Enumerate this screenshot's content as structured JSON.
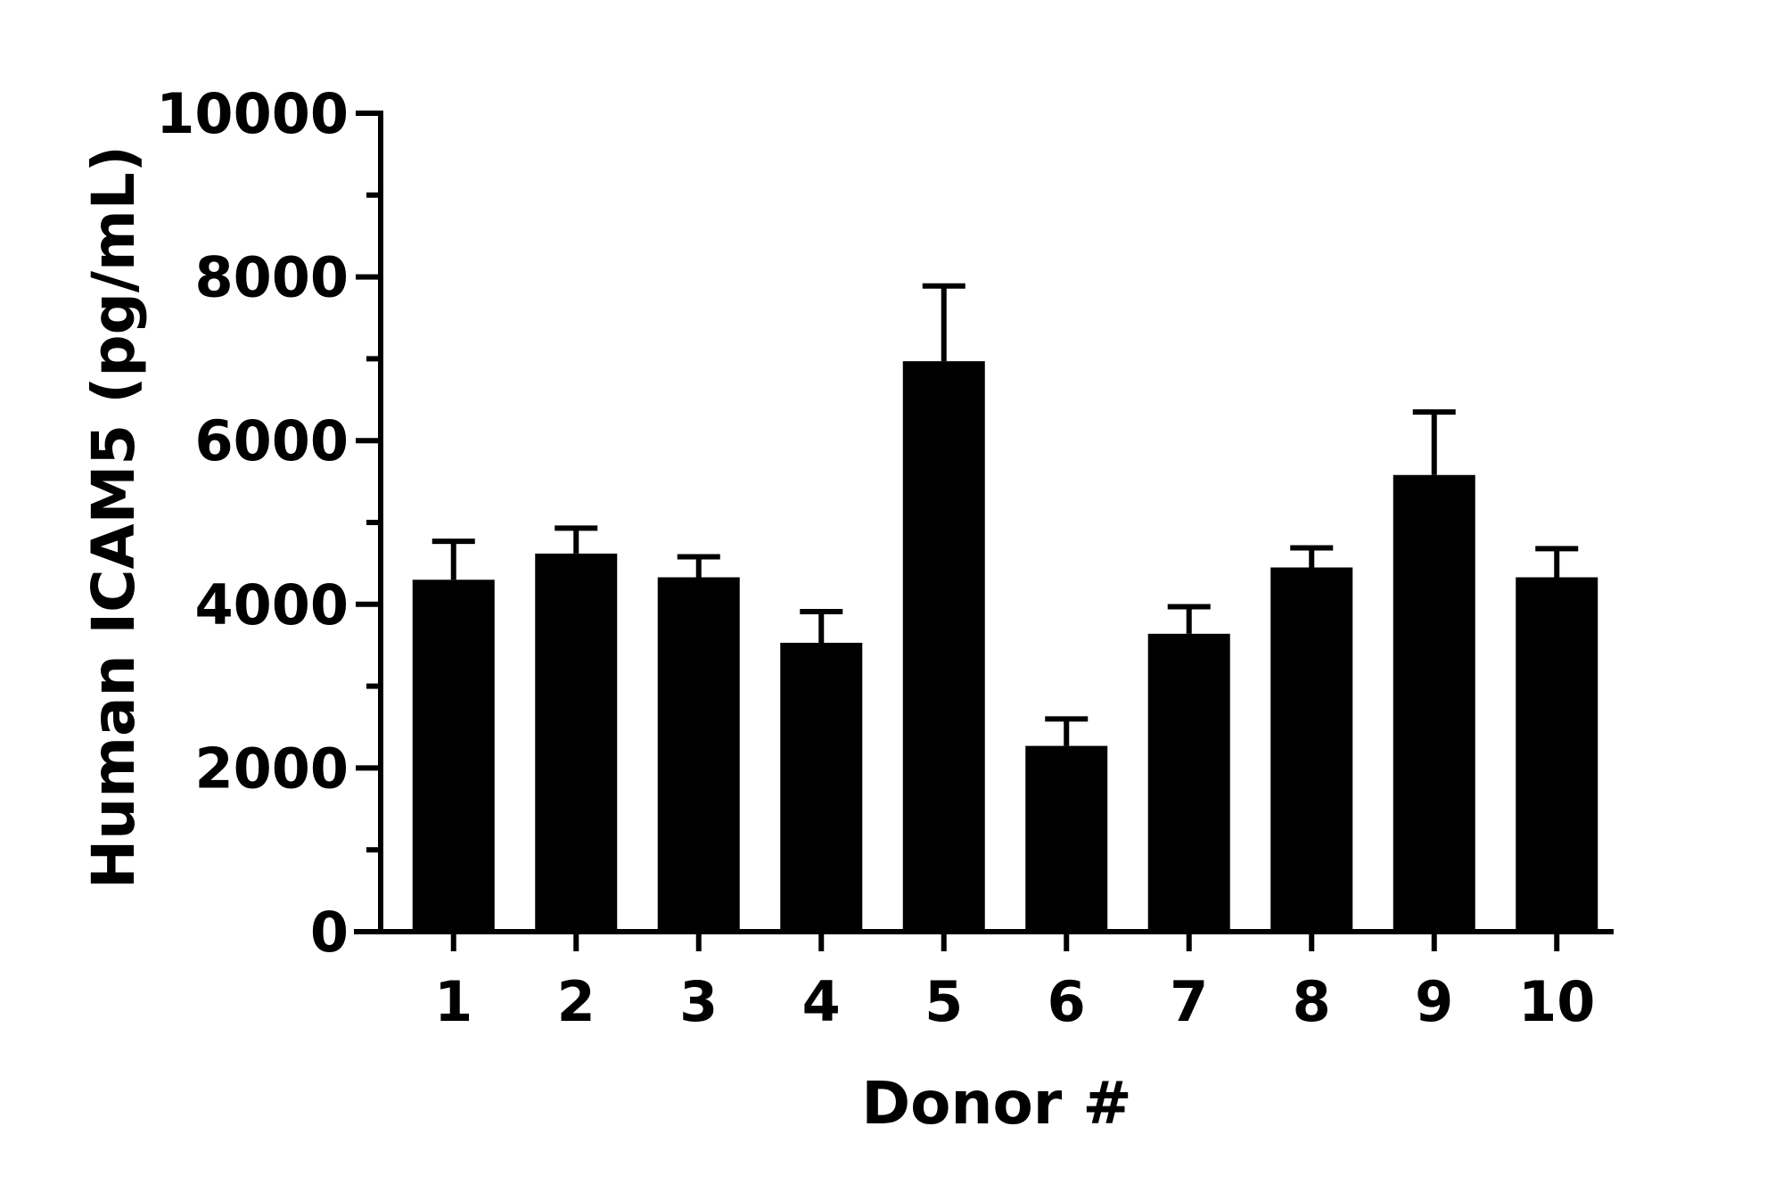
{
  "chart_data": {
    "type": "bar",
    "title": "",
    "xlabel": "Donor #",
    "ylabel": "Human ICAM5 (pg/mL)",
    "ylim": [
      0,
      10000
    ],
    "y_major_ticks": [
      0,
      2000,
      4000,
      6000,
      8000,
      10000
    ],
    "y_tick_labels": [
      "0",
      "2000",
      "4000",
      "6000",
      "8000",
      "10000"
    ],
    "y_minor_step": 1000,
    "categories": [
      "1",
      "2",
      "3",
      "4",
      "5",
      "6",
      "7",
      "8",
      "9",
      "10"
    ],
    "values": [
      4300,
      4620,
      4330,
      3530,
      6970,
      2270,
      3640,
      4450,
      5580,
      4330
    ],
    "error_upper": [
      470,
      310,
      250,
      380,
      920,
      330,
      330,
      240,
      770,
      350
    ],
    "bar_color": "#000000",
    "grid": false,
    "legend": "none"
  }
}
